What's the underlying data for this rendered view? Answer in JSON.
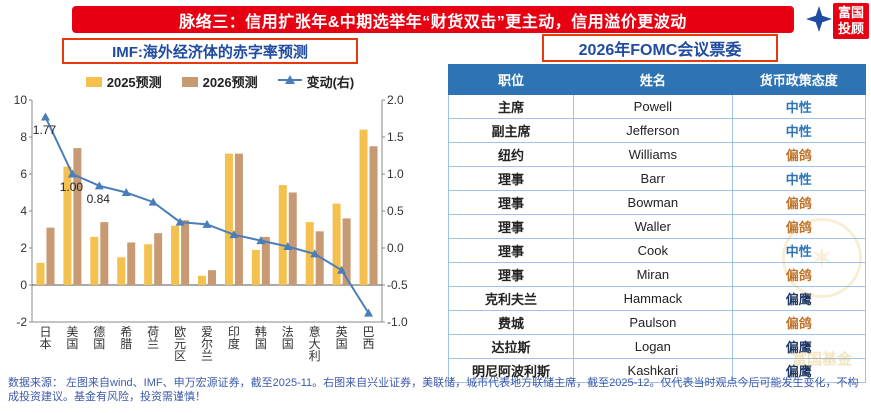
{
  "banner": {
    "title": "脉络三：信用扩张年&中期选举年“财货双击”更主动，信用溢价更波动"
  },
  "logo": {
    "line1": "富国",
    "line2": "投顾"
  },
  "left": {
    "title": "IMF:海外经济体的赤字率预测",
    "legend": [
      "2025预测",
      "2026预测",
      "变动(右)"
    ]
  },
  "chart_data": {
    "type": "bar",
    "title": "IMF:海外经济体的赤字率预测",
    "categories": [
      "日本",
      "美国",
      "德国",
      "希腊",
      "荷兰",
      "欧元区",
      "爱尔兰",
      "印度",
      "韩国",
      "法国",
      "意大利",
      "英国",
      "巴西"
    ],
    "series": [
      {
        "name": "2025预测",
        "kind": "bar",
        "axis": "left",
        "values": [
          1.2,
          6.4,
          2.6,
          1.5,
          2.2,
          3.2,
          0.5,
          7.1,
          1.9,
          5.4,
          3.4,
          4.4,
          8.4
        ]
      },
      {
        "name": "2026预测",
        "kind": "bar",
        "axis": "left",
        "values": [
          3.1,
          7.4,
          3.4,
          2.3,
          2.8,
          3.5,
          0.8,
          7.1,
          2.6,
          5.0,
          2.9,
          3.6,
          7.5
        ]
      },
      {
        "name": "变动(右)",
        "kind": "line",
        "axis": "right",
        "values": [
          1.77,
          1.0,
          0.84,
          0.75,
          0.62,
          0.35,
          0.32,
          0.18,
          0.1,
          0.02,
          -0.08,
          -0.3,
          -0.88
        ]
      }
    ],
    "point_labels": [
      {
        "index": 0,
        "text": "1.77"
      },
      {
        "index": 1,
        "text": "1.00"
      },
      {
        "index": 2,
        "text": "0.84"
      }
    ],
    "left_axis": {
      "min": -2,
      "max": 10,
      "step": 2
    },
    "right_axis": {
      "min": -1.0,
      "max": 2.0,
      "step": 0.5
    },
    "grid": false,
    "legend_position": "top"
  },
  "table": {
    "title": "2026年FOMC会议票委",
    "headers": [
      "职位",
      "姓名",
      "货币政策态度"
    ],
    "rows": [
      {
        "position": "主席",
        "name": "Powell",
        "stance": "中性",
        "stance_type": "neutral"
      },
      {
        "position": "副主席",
        "name": "Jefferson",
        "stance": "中性",
        "stance_type": "neutral"
      },
      {
        "position": "纽约",
        "name": "Williams",
        "stance": "偏鸽",
        "stance_type": "dove"
      },
      {
        "position": "理事",
        "name": "Barr",
        "stance": "中性",
        "stance_type": "neutral"
      },
      {
        "position": "理事",
        "name": "Bowman",
        "stance": "偏鸽",
        "stance_type": "dove"
      },
      {
        "position": "理事",
        "name": "Waller",
        "stance": "偏鸽",
        "stance_type": "dove"
      },
      {
        "position": "理事",
        "name": "Cook",
        "stance": "中性",
        "stance_type": "neutral"
      },
      {
        "position": "理事",
        "name": "Miran",
        "stance": "偏鸽",
        "stance_type": "dove"
      },
      {
        "position": "克利夫兰",
        "name": "Hammack",
        "stance": "偏鹰",
        "stance_type": "hawk"
      },
      {
        "position": "费城",
        "name": "Paulson",
        "stance": "偏鸽",
        "stance_type": "dove"
      },
      {
        "position": "达拉斯",
        "name": "Logan",
        "stance": "偏鹰",
        "stance_type": "hawk"
      },
      {
        "position": "明尼阿波利斯",
        "name": "Kashkari",
        "stance": "偏鹰",
        "stance_type": "hawk"
      }
    ]
  },
  "footer": {
    "text": "数据来源：  左图来自wind、IMF、申万宏源证券，截至2025-11。右图来自兴业证券，美联储，城市代表地方联储主席，截至2025-12。仅代表当时观点今后可能发生变化，不构成投资建议。基金有风险，投资需谨慎！"
  },
  "watermark": {
    "text": "富国基金"
  },
  "colors": {
    "banner_bg": "#E60012",
    "title_border": "#E8380D",
    "title_text": "#1F4BA0",
    "bar_2025": "#F4C04E",
    "bar_2026": "#C79A74",
    "line": "#4A7EBB",
    "table_header_bg": "#2E74B5",
    "stance": {
      "neutral": "#2E74B5",
      "dove": "#C0742C",
      "hawk": "#1F3864"
    }
  }
}
